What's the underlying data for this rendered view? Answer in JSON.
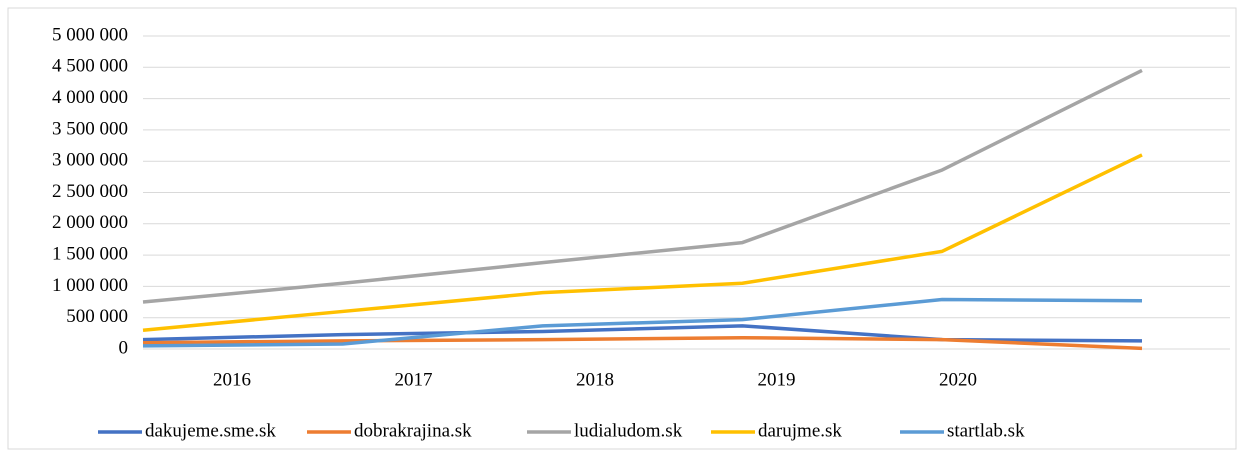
{
  "chart_data": {
    "type": "line",
    "categories": [
      "2016",
      "2017",
      "2018",
      "2019",
      "2020",
      null
    ],
    "series": [
      {
        "name": "dakujeme.sme.sk",
        "color": "#4472c4",
        "values": [
          150000,
          230000,
          280000,
          370000,
          150000,
          130000
        ]
      },
      {
        "name": "dobrakrajina.sk",
        "color": "#ed7d31",
        "values": [
          100000,
          130000,
          150000,
          180000,
          150000,
          10000
        ]
      },
      {
        "name": "ludialudom.sk",
        "color": "#a5a5a5",
        "values": [
          750000,
          1050000,
          1380000,
          1700000,
          2860000,
          4450000
        ]
      },
      {
        "name": "darujme.sk",
        "color": "#ffc000",
        "values": [
          300000,
          600000,
          900000,
          1050000,
          1560000,
          3100000
        ]
      },
      {
        "name": "startlab.sk",
        "color": "#5b9bd5",
        "values": [
          50000,
          80000,
          370000,
          470000,
          790000,
          770000
        ]
      }
    ],
    "ylim": [
      0,
      5000000
    ],
    "yticks": [
      0,
      {
        "value": 500000,
        "label": "500 000"
      },
      {
        "value": 1000000,
        "label": "1 000 000"
      },
      {
        "value": 1500000,
        "label": "1 500 000"
      },
      {
        "value": 2000000,
        "label": "2 000 000"
      },
      {
        "value": 2500000,
        "label": "2 500 000"
      },
      {
        "value": 3000000,
        "label": "3 000 000"
      },
      {
        "value": 3500000,
        "label": "3 500 000"
      },
      {
        "value": 4000000,
        "label": "4 000 000"
      },
      {
        "value": 4500000,
        "label": "4 500 000"
      },
      {
        "value": 5000000,
        "label": "5 000 000"
      }
    ],
    "grid": true,
    "legend": "bottom"
  }
}
